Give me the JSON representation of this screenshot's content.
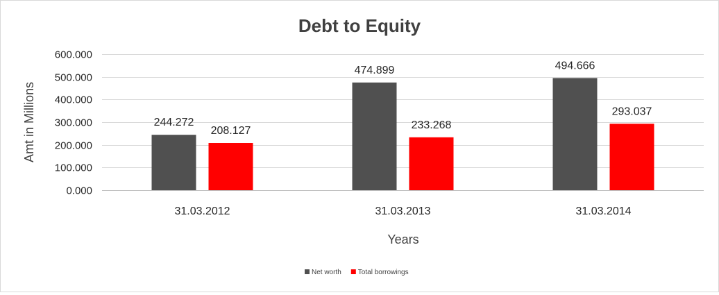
{
  "chart_data": {
    "type": "bar",
    "title": "Debt to Equity",
    "xlabel": "Years",
    "ylabel": "Amt in Millions",
    "categories": [
      "31.03.2012",
      "31.03.2013",
      "31.03.2014"
    ],
    "series": [
      {
        "name": "Net worth",
        "values": [
          244.272,
          474.899,
          494.666
        ],
        "color": "#505050",
        "labels": [
          "244.272",
          "474.899",
          "494.666"
        ]
      },
      {
        "name": "Total borrowings",
        "values": [
          208.127,
          233.268,
          293.037
        ],
        "color": "#ff0000",
        "labels": [
          "208.127",
          "233.268",
          "293.037"
        ]
      }
    ],
    "ylim": [
      0,
      600
    ],
    "yticks": [
      0,
      100,
      200,
      300,
      400,
      500,
      600
    ],
    "ytick_labels": [
      "0.000",
      "100.000",
      "200.000",
      "300.000",
      "400.000",
      "500.000",
      "600.000"
    ],
    "grid": true,
    "legend_position": "bottom"
  }
}
